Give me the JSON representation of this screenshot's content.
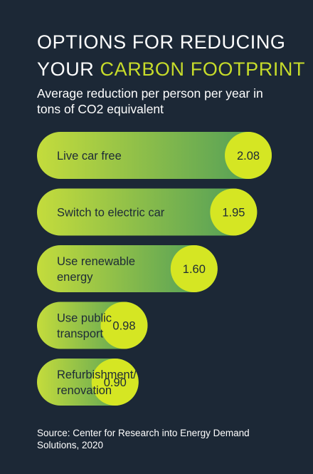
{
  "header": {
    "title_line1": "OPTIONS FOR REDUCING",
    "title_line2_plain": "YOUR ",
    "title_line2_accent": "CARBON FOOTPRINT",
    "subtitle": "Average reduction per person per year in tons of CO2 equivalent"
  },
  "chart_data": {
    "type": "bar",
    "orientation": "horizontal",
    "categories": [
      "Live car free",
      "Switch to electric car",
      "Use renewable energy",
      "Use public transport",
      "Refurbishment/ renovation"
    ],
    "category_lines": [
      [
        "Live car free"
      ],
      [
        "Switch to electric car"
      ],
      [
        "Use renewable",
        "energy"
      ],
      [
        "Use public",
        "transport"
      ],
      [
        "Refurbishment/",
        "renovation"
      ]
    ],
    "values": [
      2.08,
      1.95,
      1.6,
      0.98,
      0.9
    ],
    "value_labels": [
      "2.08",
      "1.95",
      "1.60",
      "0.98",
      "0.90"
    ],
    "unit": "tons of CO2 equivalent",
    "colors": {
      "bar_start": "#c4dc3c",
      "bar_end": "#4a9a5a",
      "value_circle": "#d5e623",
      "text": "#1d2a36"
    }
  },
  "footer": {
    "source": "Source: Center for Research into Energy Demand Solutions, 2020"
  },
  "colors": {
    "background": "#1c2836",
    "accent": "#c7dc2a"
  }
}
